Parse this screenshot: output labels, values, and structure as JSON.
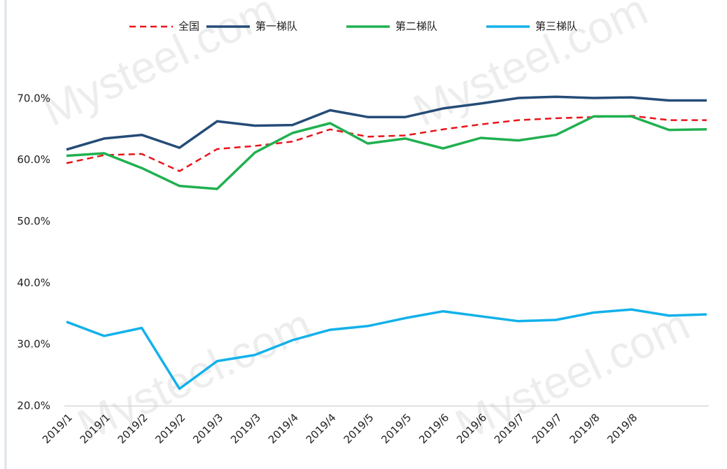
{
  "chart_data": {
    "type": "line",
    "watermark": "Mysteel.com",
    "categories": [
      "2019/1",
      "2019/1",
      "2019/2",
      "2019/2",
      "2019/3",
      "2019/3",
      "2019/4",
      "2019/4",
      "2019/5",
      "2019/5",
      "2019/6",
      "2019/6",
      "2019/7",
      "2019/7",
      "2019/8",
      "2019/8",
      null,
      null
    ],
    "series": [
      {
        "name": "全国",
        "color": "#e8141b",
        "dashed": true,
        "values": [
          59.5,
          60.8,
          61.0,
          58.2,
          61.8,
          62.3,
          63.0,
          65.0,
          63.8,
          64.0,
          65.0,
          65.8,
          66.5,
          66.8,
          67.0,
          67.2,
          66.5,
          66.5
        ]
      },
      {
        "name": "第一梯队",
        "color": "#254c77",
        "values": [
          61.7,
          63.5,
          64.1,
          62.0,
          66.3,
          65.6,
          65.7,
          68.1,
          67.0,
          67.0,
          68.4,
          69.2,
          70.1,
          70.3,
          70.1,
          70.2,
          69.7,
          69.7
        ]
      },
      {
        "name": "第二梯队",
        "color": "#20b050",
        "values": [
          60.7,
          61.1,
          58.7,
          55.8,
          55.3,
          61.2,
          64.4,
          66.0,
          62.7,
          63.5,
          61.9,
          63.6,
          63.2,
          64.1,
          67.1,
          67.1,
          64.9,
          65.0
        ]
      },
      {
        "name": "第三梯队",
        "color": "#12b1ea",
        "values": [
          33.7,
          31.4,
          32.7,
          22.8,
          27.3,
          28.3,
          30.7,
          32.4,
          33.0,
          34.3,
          35.4,
          34.6,
          33.8,
          34.0,
          35.2,
          35.7,
          34.7,
          34.9
        ]
      }
    ],
    "ylim": [
      20,
      80
    ],
    "yticks": [
      {
        "value": 20,
        "label": "20.0%"
      },
      {
        "value": 30,
        "label": "30.0%"
      },
      {
        "value": 40,
        "label": "40.0%"
      },
      {
        "value": 50,
        "label": "50.0%"
      },
      {
        "value": 60,
        "label": "60.0%"
      },
      {
        "value": 70,
        "label": "70.0%"
      }
    ],
    "legend": "top",
    "grid": false
  }
}
